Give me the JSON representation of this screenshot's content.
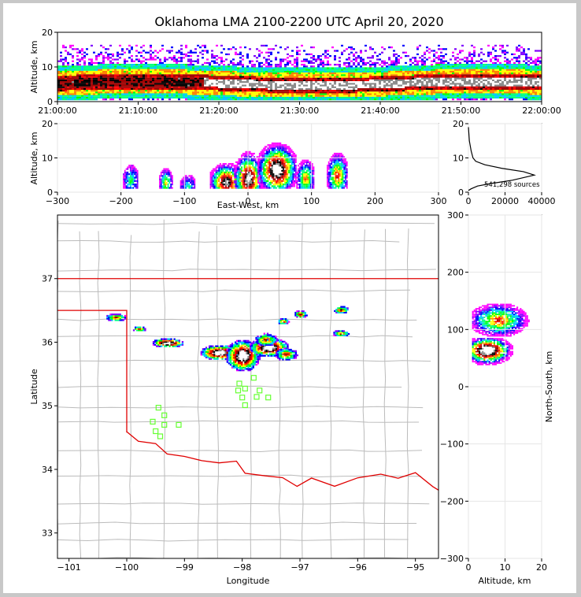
{
  "title": "Oklahoma LMA 2100-2200 UTC April 20, 2020",
  "colors": {
    "state_border": "#e00000",
    "county_lines": "#bbbbbb",
    "stations": "#66ff33",
    "hist_line": "#000000",
    "density_ramp": [
      "#ff00ff",
      "#8000ff",
      "#0000ff",
      "#00c8ff",
      "#00ff80",
      "#00ff00",
      "#ffff00",
      "#ff8000",
      "#ff0000",
      "#a00000",
      "#000000",
      "#888888",
      "#ffffff"
    ]
  },
  "chart_data": [
    {
      "name": "time-altitude",
      "type": "heatmap",
      "ylabel": "Altitude, km",
      "ylim": [
        0,
        20
      ],
      "yticks": [
        "0",
        "10",
        "20"
      ],
      "xticks": [
        "21:00:00",
        "21:10:00",
        "21:20:00",
        "21:30:00",
        "21:40:00",
        "21:50:00",
        "22:00:00"
      ]
    },
    {
      "name": "east-west-altitude",
      "type": "heatmap",
      "xlabel": "East-West, km",
      "ylabel": "Altitude, km",
      "xlim": [
        -300,
        300
      ],
      "ylim": [
        0,
        20
      ],
      "xticks": [
        "-300",
        "-200",
        "-100",
        "0",
        "100",
        "200",
        "300"
      ],
      "yticks": [
        "0",
        "10",
        "20"
      ],
      "clusters_x_km": [
        -185,
        -130,
        -95,
        -35,
        0,
        45,
        90,
        140
      ]
    },
    {
      "name": "altitude-histogram",
      "type": "line",
      "xlim": [
        0,
        40000
      ],
      "ylim": [
        0,
        20
      ],
      "xticks": [
        "0",
        "20000",
        "40000"
      ],
      "yticks": [
        "0",
        "10",
        "20"
      ],
      "annotation": "541,298 sources",
      "x": [
        0,
        1500,
        5000,
        12000,
        24000,
        36000,
        30000,
        18000,
        9000,
        4000,
        2500,
        1500,
        500,
        0
      ],
      "y": [
        0.5,
        1,
        1.8,
        2.5,
        3.5,
        5,
        6,
        7,
        8,
        9,
        10,
        12,
        15,
        19
      ]
    },
    {
      "name": "plan-view",
      "type": "heatmap",
      "xlabel": "Longitude",
      "ylabel": "Latitude",
      "xlim": [
        -101.2,
        -94.6
      ],
      "ylim": [
        32.6,
        38.0
      ],
      "xticks": [
        "-101",
        "-100",
        "-99",
        "-98",
        "-97",
        "-96",
        "-95"
      ],
      "yticks": [
        "33",
        "34",
        "35",
        "36",
        "37"
      ],
      "stations": [
        [
          -99.45,
          34.97
        ],
        [
          -99.35,
          34.85
        ],
        [
          -99.55,
          34.75
        ],
        [
          -99.35,
          34.7
        ],
        [
          -99.1,
          34.7
        ],
        [
          -99.5,
          34.6
        ],
        [
          -99.42,
          34.52
        ],
        [
          -97.8,
          35.44
        ],
        [
          -98.05,
          35.35
        ],
        [
          -98.07,
          35.24
        ],
        [
          -97.95,
          35.27
        ],
        [
          -97.7,
          35.24
        ],
        [
          -98.0,
          35.13
        ],
        [
          -97.75,
          35.14
        ],
        [
          -97.55,
          35.13
        ],
        [
          -97.95,
          35.01
        ]
      ],
      "storms": [
        [
          -100.2,
          36.4,
          0.18,
          0.06
        ],
        [
          -99.8,
          36.22,
          0.12,
          0.04
        ],
        [
          -99.3,
          36.0,
          0.28,
          0.07
        ],
        [
          -98.4,
          35.85,
          0.35,
          0.12
        ],
        [
          -98.0,
          35.8,
          0.3,
          0.25
        ],
        [
          -97.55,
          35.93,
          0.35,
          0.15
        ],
        [
          -97.25,
          35.82,
          0.2,
          0.1
        ],
        [
          -97.6,
          36.05,
          0.2,
          0.1
        ],
        [
          -97.0,
          36.45,
          0.12,
          0.06
        ],
        [
          -97.3,
          36.34,
          0.1,
          0.05
        ],
        [
          -96.3,
          36.52,
          0.14,
          0.06
        ],
        [
          -96.3,
          36.15,
          0.15,
          0.05
        ]
      ]
    },
    {
      "name": "altitude-north-south",
      "type": "heatmap",
      "xlabel": "Altitude, km",
      "ylabel": "North-South, km",
      "xlim": [
        0,
        20
      ],
      "ylim": [
        -300,
        300
      ],
      "xticks": [
        "0",
        "10",
        "20"
      ],
      "yticks": [
        "-300",
        "-200",
        "-100",
        "0",
        "100",
        "200",
        "300"
      ]
    }
  ]
}
